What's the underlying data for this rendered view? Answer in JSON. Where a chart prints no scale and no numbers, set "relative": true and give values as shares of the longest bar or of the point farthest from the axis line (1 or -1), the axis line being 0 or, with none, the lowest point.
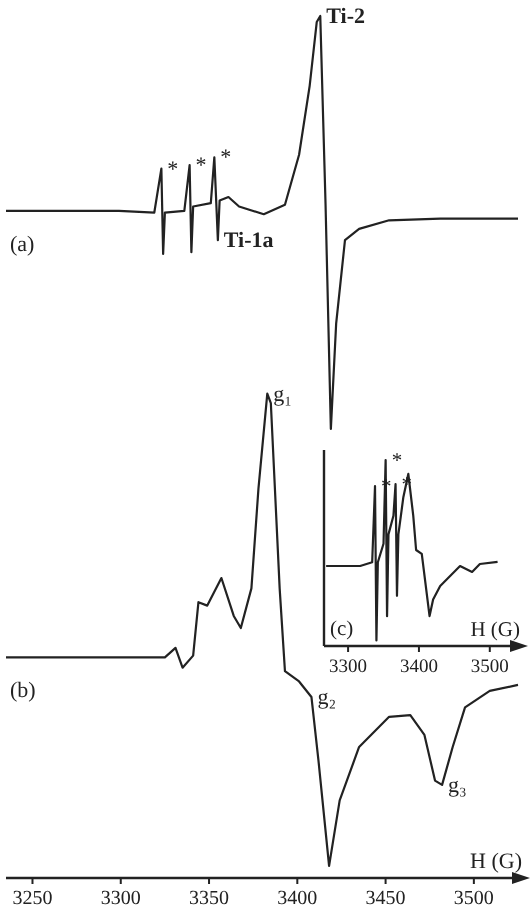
{
  "chart_data": [
    {
      "type": "line",
      "relative": true,
      "xlabel": "H (G)",
      "xlim": [
        3235,
        3525
      ],
      "xticks": [
        3250,
        3300,
        3350,
        3400,
        3450,
        3500
      ],
      "grid": false,
      "legend": false,
      "marker": "none",
      "line_style": "solid",
      "series": [
        {
          "name": "(a)",
          "color": "#222222",
          "x": [
            3235,
            3299,
            3319,
            3323,
            3324,
            3325,
            3336,
            3339,
            3340,
            3341,
            3351,
            3353,
            3355,
            3356,
            3361,
            3367,
            3381,
            3393,
            3401,
            3407,
            3411,
            3413,
            3416,
            3419,
            3422,
            3427,
            3435,
            3452,
            3481,
            3525
          ],
          "values": [
            0.774,
            0.774,
            0.772,
            0.823,
            0.724,
            0.772,
            0.774,
            0.827,
            0.726,
            0.779,
            0.783,
            0.836,
            0.74,
            0.786,
            0.79,
            0.779,
            0.77,
            0.781,
            0.839,
            0.919,
            0.993,
            1,
            0.781,
            0.521,
            0.643,
            0.74,
            0.753,
            0.763,
            0.765,
            0.765
          ]
        },
        {
          "name": "(b)",
          "color": "#222222",
          "x": [
            3235,
            3325,
            3331,
            3335,
            3341,
            3344,
            3349,
            3357,
            3364,
            3368,
            3374,
            3378,
            3383,
            3385,
            3390,
            3393,
            3401,
            3408,
            3412,
            3418,
            3424,
            3435,
            3452,
            3464,
            3472,
            3478,
            3482,
            3488,
            3495,
            3509,
            3525
          ],
          "values": [
            0.256,
            0.256,
            0.267,
            0.244,
            0.258,
            0.32,
            0.316,
            0.348,
            0.304,
            0.29,
            0.336,
            0.452,
            0.562,
            0.551,
            0.336,
            0.24,
            0.228,
            0.21,
            0.136,
            0.014,
            0.09,
            0.152,
            0.187,
            0.189,
            0.166,
            0.113,
            0.108,
            0.152,
            0.198,
            0.217,
            0.224
          ]
        }
      ],
      "annotations": [
        {
          "text": "*",
          "x": 3323,
          "y": 0.823
        },
        {
          "text": "*",
          "x": 3339,
          "y": 0.827
        },
        {
          "text": "*",
          "x": 3353,
          "y": 0.836
        },
        {
          "text": "Ti-2",
          "x": 3413,
          "y": 1
        },
        {
          "text": "Ti-1a",
          "x": 3355,
          "y": 0.74
        },
        {
          "text": "g₁",
          "x": 3383,
          "y": 0.562
        },
        {
          "text": "g₂",
          "x": 3408,
          "y": 0.21
        },
        {
          "text": "g₃",
          "x": 3482,
          "y": 0.108
        }
      ]
    },
    {
      "type": "line",
      "relative": true,
      "xlabel": "H (G)",
      "xlim": [
        3266,
        3537
      ],
      "xticks": [
        3300,
        3400,
        3500
      ],
      "grid": false,
      "legend": false,
      "marker": "none",
      "line_style": "solid",
      "series": [
        {
          "color": "#222222",
          "x": [
            3269,
            3317,
            3334,
            3338,
            3340,
            3342,
            3350,
            3353,
            3355,
            3357,
            3364,
            3367,
            3369,
            3371,
            3378,
            3385,
            3392,
            3396,
            3404,
            3415,
            3420,
            3430,
            3458,
            3475,
            3486,
            3511
          ],
          "values": [
            0.43,
            0.43,
            0.45,
            0.86,
            0.03,
            0.45,
            0.55,
            1.0,
            0.16,
            0.6,
            0.7,
            0.87,
            0.27,
            0.6,
            0.8,
            0.925,
            0.7,
            0.516,
            0.495,
            0.161,
            0.25,
            0.323,
            0.43,
            0.398,
            0.441,
            0.452
          ]
        }
      ],
      "annotations": [
        {
          "text": "*",
          "x": 3338,
          "y": 0.86
        },
        {
          "text": "*",
          "x": 3353,
          "y": 1.0
        },
        {
          "text": "*",
          "x": 3367,
          "y": 0.87
        },
        "(c)"
      ]
    }
  ]
}
